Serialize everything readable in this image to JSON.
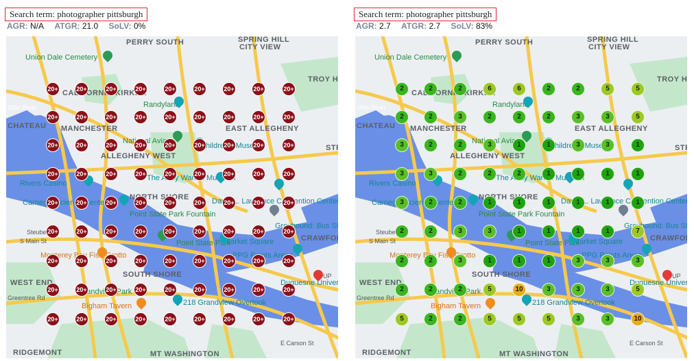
{
  "left": {
    "search_term": "Search term: photographer pittsburgh",
    "agr_label": "AGR:",
    "agr_value": "N/A",
    "atgr_label": "ATGR:",
    "atgr_value": "21.0",
    "solv_label": "SoLV:",
    "solv_value": "0%"
  },
  "right": {
    "search_term": "Search term: photographer pittsburgh",
    "agr_label": "AGR:",
    "agr_value": "2.7",
    "atgr_label": "ATGR:",
    "atgr_value": "2.7",
    "solv_label": "SoLV:",
    "solv_value": "83%"
  },
  "map_labels": {
    "perry_south": "PERRY SOUTH",
    "spring_hill": "SPRING HILL",
    "city_view": "CITY VIEW",
    "union_dale": "Union Dale Cemetery",
    "troy_hill": "TROY HI",
    "california_kirkbride": "CALIFORNIA-KIRKBR",
    "randyland": "Randyland",
    "chateau": "CHATEAU",
    "manchester": "MANCHESTER",
    "east_allegheny": "EAST ALLEGHENY",
    "national_aviary": "National Aviary",
    "childrens_museum": "Children's Museum",
    "allegheny_west": "ALLEGHENY WEST",
    "str": "STR",
    "rivers_casino": "Rivers Casino",
    "warhol_museum": "The Andy Warhol Museum",
    "north_shore": "NORTH SHORE",
    "carnegie_science": "Carnegie Science Center",
    "convention_center": "David L. Lawrence Convention Center",
    "point_state_fountain": "Point State Park Fountain",
    "greyhound": "Greyhound: Bus Station",
    "point_state_park": "Point State Park",
    "market_square": "Market Square",
    "crawford": "CRAWFORD",
    "monterey_bay": "Monterey Bay Fish Grotto",
    "ppg_paints": "PPG Paints Arena",
    "south_shore": "SOUTH SHORE",
    "west_end": "WEST END",
    "grandview_park": "Grandview Park",
    "duquesne": "Duquesne University",
    "bigham_tavern": "Bigham Tavern",
    "grandview_overlook": "218 Grandview Overlook",
    "ridgemont": "RIDGEMONT",
    "mt_washington": "MT WASHINGTON",
    "ohio_river": "Ohio River",
    "main_st": "S Main St",
    "e_carson": "E Carson St",
    "steuben": "Steuben St",
    "greentree": "Greentree Rd",
    "up": "UP"
  },
  "grid": {
    "left_values": [
      [
        "20+",
        "20+",
        "20+",
        "20+",
        "20+",
        "20+",
        "20+",
        "20+",
        "20+"
      ],
      [
        "20+",
        "20+",
        "20+",
        "20+",
        "20+",
        "20+",
        "20+",
        "20+",
        "20+"
      ],
      [
        "20+",
        "20+",
        "20+",
        "20+",
        "20+",
        "20+",
        "20+",
        "20+",
        "20+"
      ],
      [
        "20+",
        "20+",
        "20+",
        "20+",
        "20+",
        "20+",
        "20+",
        "20+",
        "20+"
      ],
      [
        "20+",
        "20+",
        "20+",
        "20+",
        "20+",
        "20+",
        "20+",
        "20+",
        "20+"
      ],
      [
        "20+",
        "20+",
        "20+",
        "20+",
        "20+",
        "20+",
        "20+",
        "20+",
        "20+"
      ],
      [
        "20+",
        "20+",
        "20+",
        "20+",
        "20+",
        "20+",
        "20+",
        "20+",
        "20+"
      ],
      [
        "20+",
        "20+",
        "20+",
        "20+",
        "20+",
        "20+",
        "20+",
        "20+",
        "20+"
      ],
      [
        "20+",
        "20+",
        "20+",
        "20+",
        "20+",
        "20+",
        "20+",
        "20+",
        "20+"
      ]
    ],
    "right_values": [
      [
        "2",
        "2",
        "2",
        "6",
        "6",
        "2",
        "2",
        "5",
        "5"
      ],
      [
        "2",
        "2",
        "3",
        "2",
        "2",
        "2",
        "3",
        "3",
        "5"
      ],
      [
        "3",
        "2",
        "2",
        "3",
        "1",
        "1",
        "3",
        "3",
        "1"
      ],
      [
        "3",
        "3",
        "2",
        "2",
        "2",
        "1",
        "1",
        "1",
        "1"
      ],
      [
        "3",
        "2",
        "2",
        "1",
        "1",
        "1",
        "1",
        "1",
        "1"
      ],
      [
        "2",
        "2",
        "3",
        "3",
        "1",
        "1",
        "1",
        "1",
        "7"
      ],
      [
        "2",
        "2",
        "3",
        "1",
        "1",
        "1",
        "3",
        "3",
        "3"
      ],
      [
        "2",
        "2",
        "2",
        "5",
        "10",
        "3",
        "3",
        "3",
        "5"
      ],
      [
        "5",
        "2",
        "2",
        "5",
        "5",
        "5",
        "3",
        "3",
        "10"
      ]
    ]
  },
  "colors": {
    "red_marker": "#8b0f18",
    "green_strong": "#1fa40f",
    "green_mid": "#3ab520",
    "green_light": "#59bf26",
    "yellow_green": "#9cc828",
    "orange": "#e3ad1c",
    "water": "#6a8fe6",
    "park": "#c4e7cb",
    "highway": "#f6c94d",
    "box_border": "#e0262f"
  }
}
